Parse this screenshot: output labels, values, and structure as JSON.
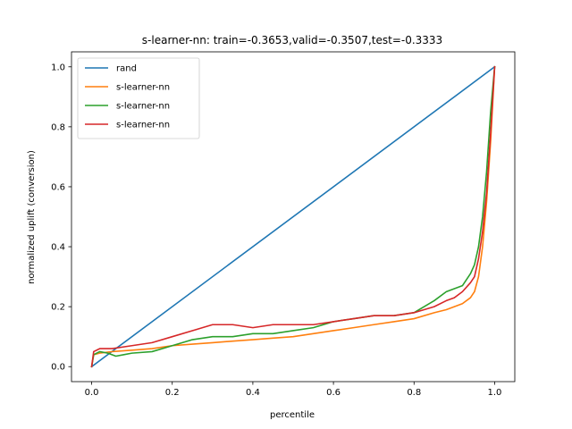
{
  "chart_data": {
    "type": "line",
    "title": "s-learner-nn: train=-0.3653,valid=-0.3507,test=-0.3333",
    "xlabel": "percentile",
    "ylabel": "normalized uplift (conversion)",
    "xlim": [
      -0.05,
      1.05
    ],
    "ylim": [
      -0.05,
      1.05
    ],
    "xticks": [
      0.0,
      0.2,
      0.4,
      0.6,
      0.8,
      1.0
    ],
    "yticks": [
      0.0,
      0.2,
      0.4,
      0.6,
      0.8,
      1.0
    ],
    "xtick_labels": [
      "0.0",
      "0.2",
      "0.4",
      "0.6",
      "0.8",
      "1.0"
    ],
    "ytick_labels": [
      "0.0",
      "0.2",
      "0.4",
      "0.6",
      "0.8",
      "1.0"
    ],
    "grid": false,
    "legend_position": "top-left",
    "series": [
      {
        "name": "rand",
        "color": "#1f77b4",
        "x": [
          0.0,
          1.0
        ],
        "y": [
          0.0,
          1.0
        ]
      },
      {
        "name": "s-learner-nn",
        "color": "#ff7f0e",
        "x": [
          0.0,
          0.005,
          0.02,
          0.05,
          0.1,
          0.15,
          0.2,
          0.25,
          0.3,
          0.35,
          0.4,
          0.45,
          0.5,
          0.55,
          0.6,
          0.65,
          0.7,
          0.75,
          0.8,
          0.85,
          0.88,
          0.9,
          0.92,
          0.94,
          0.95,
          0.96,
          0.97,
          0.98,
          0.99,
          1.0
        ],
        "y": [
          0.0,
          0.04,
          0.045,
          0.05,
          0.055,
          0.06,
          0.07,
          0.075,
          0.08,
          0.085,
          0.09,
          0.095,
          0.1,
          0.11,
          0.12,
          0.13,
          0.14,
          0.15,
          0.16,
          0.18,
          0.19,
          0.2,
          0.21,
          0.23,
          0.25,
          0.3,
          0.4,
          0.55,
          0.75,
          1.0
        ]
      },
      {
        "name": "s-learner-nn",
        "color": "#2ca02c",
        "x": [
          0.0,
          0.005,
          0.02,
          0.04,
          0.06,
          0.08,
          0.1,
          0.15,
          0.2,
          0.25,
          0.3,
          0.35,
          0.4,
          0.45,
          0.5,
          0.55,
          0.6,
          0.65,
          0.7,
          0.75,
          0.8,
          0.85,
          0.88,
          0.9,
          0.92,
          0.94,
          0.95,
          0.96,
          0.97,
          0.98,
          0.99,
          1.0
        ],
        "y": [
          0.0,
          0.04,
          0.05,
          0.045,
          0.035,
          0.04,
          0.045,
          0.05,
          0.07,
          0.09,
          0.1,
          0.1,
          0.11,
          0.11,
          0.12,
          0.13,
          0.15,
          0.16,
          0.17,
          0.17,
          0.18,
          0.22,
          0.25,
          0.26,
          0.27,
          0.31,
          0.34,
          0.4,
          0.5,
          0.65,
          0.85,
          1.0
        ]
      },
      {
        "name": "s-learner-nn",
        "color": "#d62728",
        "x": [
          0.0,
          0.005,
          0.02,
          0.05,
          0.1,
          0.15,
          0.2,
          0.25,
          0.3,
          0.35,
          0.4,
          0.45,
          0.5,
          0.55,
          0.6,
          0.65,
          0.7,
          0.75,
          0.8,
          0.85,
          0.88,
          0.9,
          0.92,
          0.94,
          0.95,
          0.96,
          0.97,
          0.98,
          0.99,
          1.0
        ],
        "y": [
          0.0,
          0.05,
          0.06,
          0.06,
          0.07,
          0.08,
          0.1,
          0.12,
          0.14,
          0.14,
          0.13,
          0.14,
          0.14,
          0.14,
          0.15,
          0.16,
          0.17,
          0.17,
          0.18,
          0.2,
          0.22,
          0.23,
          0.25,
          0.28,
          0.3,
          0.36,
          0.45,
          0.58,
          0.78,
          1.0
        ]
      }
    ]
  }
}
